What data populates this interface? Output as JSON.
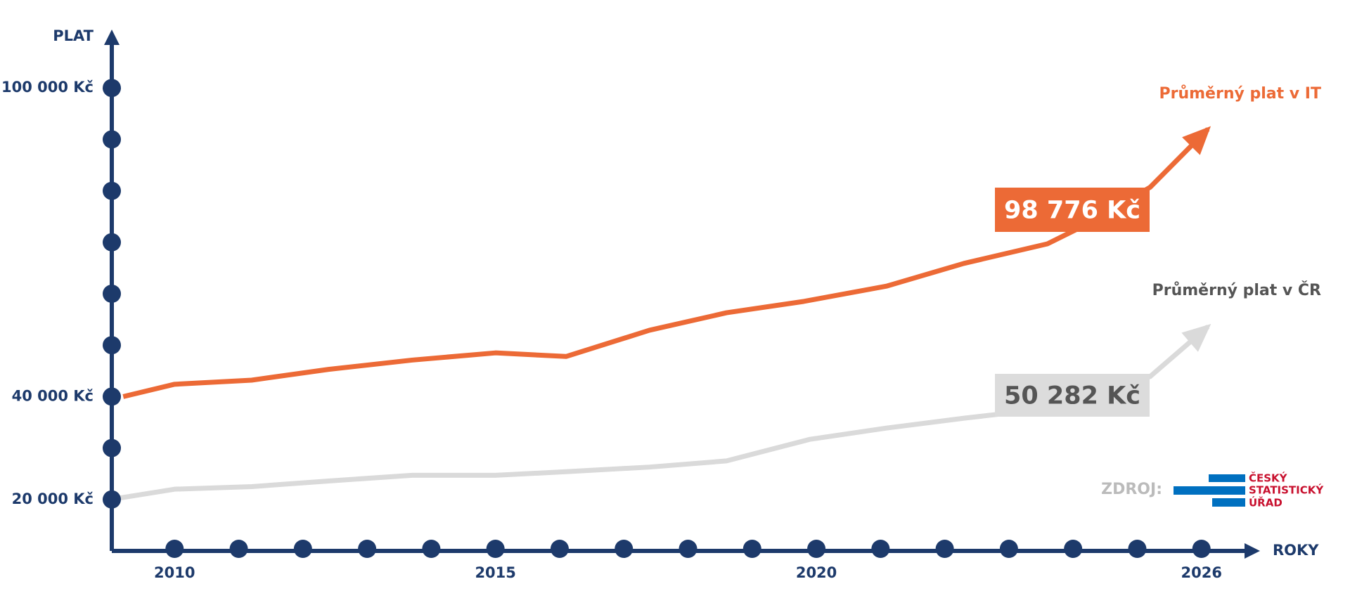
{
  "chart_data": {
    "type": "line",
    "y_label": "PLAT",
    "x_label": "ROKY",
    "xlim": [
      2009,
      2027
    ],
    "ylim": [
      10000,
      110000
    ],
    "xticks": [
      2010,
      2015,
      2020,
      2026
    ],
    "xminor_ticks": [
      2011,
      2012,
      2013,
      2014,
      2016,
      2017,
      2018,
      2019,
      2021,
      2022,
      2023,
      2024,
      2025
    ],
    "yticks": [
      {
        "value": 20000,
        "label": "20 000 Kč"
      },
      {
        "value": 40000,
        "label": "40 000 Kč"
      },
      {
        "value": 100000,
        "label": "100 000 Kč"
      }
    ],
    "yminor_ticks": [
      30000,
      50000,
      60000,
      70000,
      80000,
      90000
    ],
    "series": [
      {
        "name": "Průměrný plat v IT",
        "color": "#ec6a36",
        "x": [
          2009.2,
          2010,
          2011.2,
          2012.4,
          2013.7,
          2015,
          2016.1,
          2017.4,
          2018.6,
          2019.8,
          2021.1,
          2022.3,
          2023.6,
          2024.1,
          2025.2,
          2026.1
        ],
        "values": [
          40000,
          42400,
          43200,
          45300,
          47100,
          48500,
          47800,
          52900,
          56300,
          58500,
          61500,
          65900,
          69700,
          72800,
          80700,
          92000
        ]
      },
      {
        "name": "Průměrný plat v ČR",
        "color": "#dadada",
        "x": [
          2009,
          2010,
          2011.2,
          2012.4,
          2013.7,
          2015,
          2016.1,
          2017.4,
          2018.6,
          2019.9,
          2021.1,
          2022.3,
          2023,
          2025.2,
          2026.1
        ],
        "values": [
          20000,
          22000,
          22500,
          23600,
          24700,
          24700,
          25400,
          26300,
          27500,
          31700,
          33900,
          35800,
          36800,
          43900,
          53600
        ]
      }
    ],
    "annotations": [
      "98 776 Kč",
      "50 282 Kč"
    ],
    "source_label": "ZDROJ:",
    "source_name": [
      "ČESKÝ",
      "STATISTICKÝ",
      "ÚŘAD"
    ]
  }
}
